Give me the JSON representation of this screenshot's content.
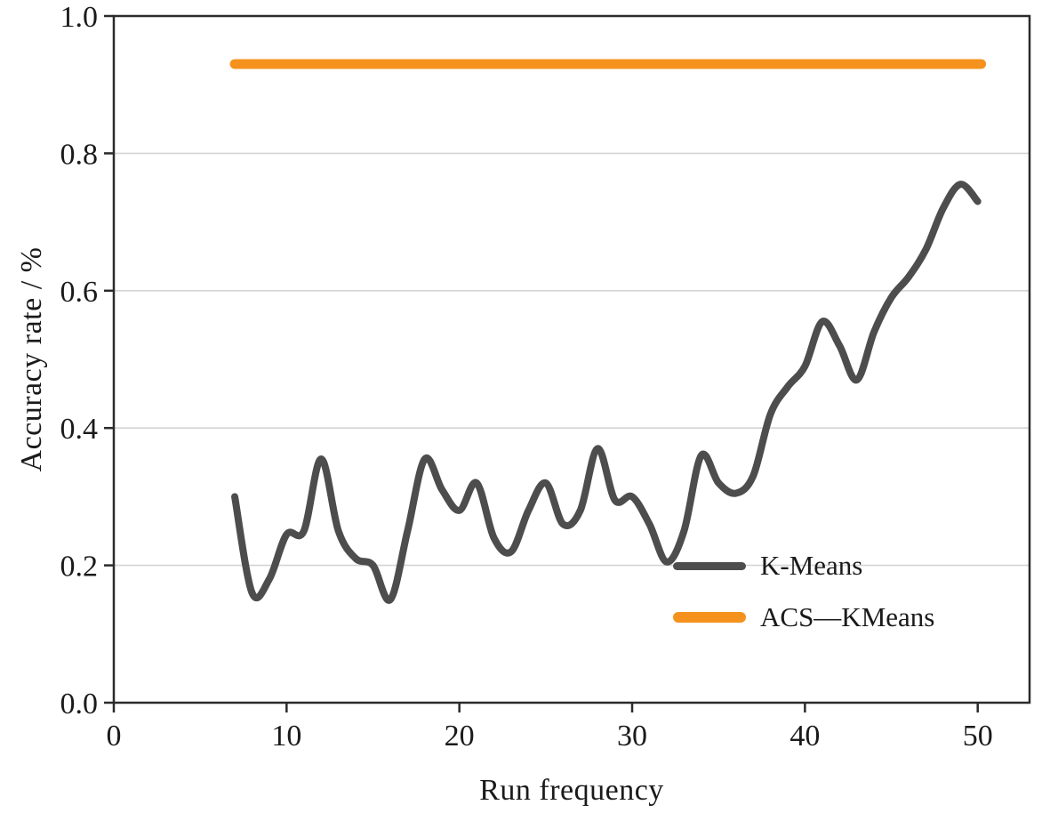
{
  "chart_data": {
    "type": "line",
    "title": "",
    "xlabel": "Run frequency",
    "ylabel": "Accuracy rate / %",
    "xlim": [
      0,
      53
    ],
    "ylim": [
      0,
      1
    ],
    "x_ticks": [
      0,
      10,
      20,
      30,
      40,
      50
    ],
    "x_tick_labels": [
      "0",
      "10",
      "20",
      "30",
      "40",
      "50"
    ],
    "y_ticks": [
      0,
      0.2,
      0.4,
      0.6,
      0.8,
      1
    ],
    "y_tick_labels": [
      "0.0",
      "0.2",
      "0.4",
      "0.6",
      "0.8",
      "1.0"
    ],
    "grid": "horizontal gridlines at 0.2, 0.4, 0.6, 0.8",
    "gridline_color": "#d4d4d4",
    "axis_color": "#2b2b2b",
    "text_color": "#1a1a1a",
    "legend_position": "lower right",
    "series": [
      {
        "name": "K-Means",
        "color": "#4d4d4d",
        "line_width": 8,
        "smooth": true,
        "x": [
          7,
          8,
          9,
          10,
          11,
          12,
          13,
          14,
          15,
          16,
          17,
          18,
          19,
          20,
          21,
          22,
          23,
          24,
          25,
          26,
          27,
          28,
          29,
          30,
          31,
          32,
          33,
          34,
          35,
          36,
          37,
          38,
          39,
          40,
          41,
          42,
          43,
          44,
          45,
          46,
          47,
          48,
          49,
          50
        ],
        "y": [
          0.3,
          0.16,
          0.18,
          0.245,
          0.25,
          0.355,
          0.25,
          0.21,
          0.2,
          0.15,
          0.25,
          0.355,
          0.31,
          0.28,
          0.32,
          0.24,
          0.22,
          0.28,
          0.32,
          0.26,
          0.28,
          0.37,
          0.295,
          0.3,
          0.26,
          0.205,
          0.25,
          0.36,
          0.32,
          0.305,
          0.33,
          0.42,
          0.46,
          0.49,
          0.555,
          0.52,
          0.47,
          0.54,
          0.59,
          0.62,
          0.66,
          0.72,
          0.755,
          0.73
        ]
      },
      {
        "name": "ACS—KMeans",
        "color": "#F5921E",
        "line_width": 11,
        "smooth": false,
        "x": [
          7,
          50.2
        ],
        "y": [
          0.93,
          0.93
        ]
      }
    ]
  }
}
